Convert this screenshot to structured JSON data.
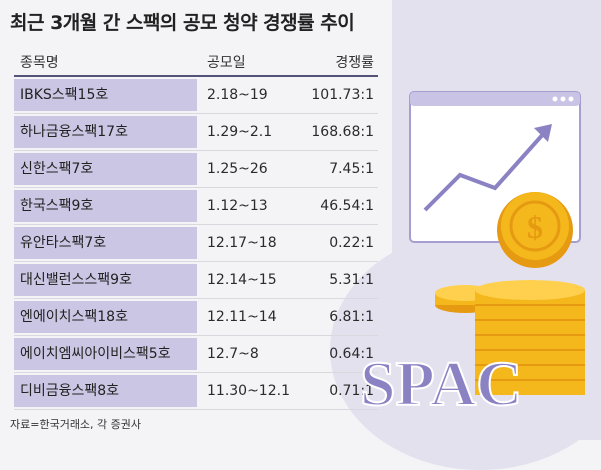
{
  "title": "최근 3개월 간 스팩의 공모 청약 경쟁률 추이",
  "columns": [
    "종목명",
    "공모일",
    "경쟁률"
  ],
  "rows": [
    {
      "name": "IBKS스팩15호",
      "date": "2.18~19",
      "rate": "101.73:1"
    },
    {
      "name": "하나금융스팩17호",
      "date": "1.29~2.1",
      "rate": "168.68:1"
    },
    {
      "name": "신한스팩7호",
      "date": "1.25~26",
      "rate": "7.45:1"
    },
    {
      "name": "한국스팩9호",
      "date": "1.12~13",
      "rate": "46.54:1"
    },
    {
      "name": "유안타스팩7호",
      "date": "12.17~18",
      "rate": "0.22:1"
    },
    {
      "name": "대신밸런스스팩9호",
      "date": "12.14~15",
      "rate": "5.31:1"
    },
    {
      "name": "엔에이치스팩18호",
      "date": "12.11~14",
      "rate": "6.81:1"
    },
    {
      "name": "에이치엠씨아이비스팩5호",
      "date": "12.7~8",
      "rate": "0.64:1"
    },
    {
      "name": "디비금융스팩8호",
      "date": "11.30~12.1",
      "rate": "0.71:1"
    }
  ],
  "source": "자료=한국거래소, 각 증권사",
  "illustration": {
    "word": "SPAC",
    "icons": [
      "chart-board-icon",
      "coin-stack-icon",
      "dollar-coin-icon"
    ],
    "colors": {
      "accent": "#55527a",
      "name_cell": "#cbc6e3",
      "coin": "#f5b81c",
      "coin_dark": "#e59a12",
      "spac_text": "#8b82c4"
    }
  }
}
